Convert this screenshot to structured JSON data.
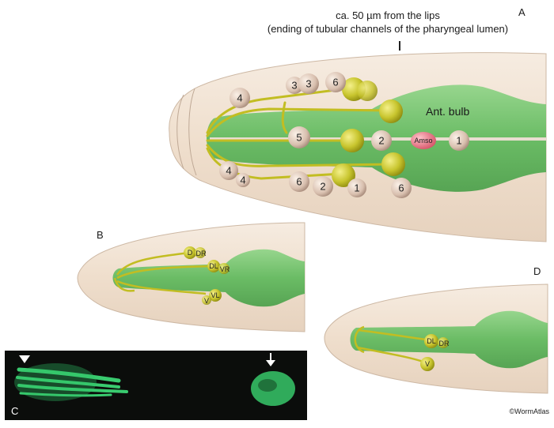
{
  "header": {
    "line1": "ca. 50 µm from the lips",
    "line2": "(ending of tubular channels of the pharyngeal lumen)"
  },
  "panels": {
    "a": "A",
    "b": "B",
    "c": "C",
    "d": "D"
  },
  "panel_a": {
    "bulb_label": "Ant. bulb",
    "amso_label": "Amso",
    "cells": [
      "3",
      "3",
      "6",
      "4",
      "5",
      "2",
      "1",
      "4",
      "4",
      "6",
      "2",
      "1",
      "6"
    ]
  },
  "panel_b": {
    "labels": [
      "D",
      "DR",
      "DL",
      "VR",
      "VL",
      "V"
    ]
  },
  "panel_d": {
    "labels": [
      "DL",
      "DR",
      "V"
    ]
  },
  "credit": "©WormAtlas",
  "colors": {
    "pharynx": "#6dbf6a",
    "cuticle": "#f3e3d2",
    "neuron": "#c9c534",
    "amso": "#e07a86",
    "nucleus": "#d9c2b0"
  }
}
